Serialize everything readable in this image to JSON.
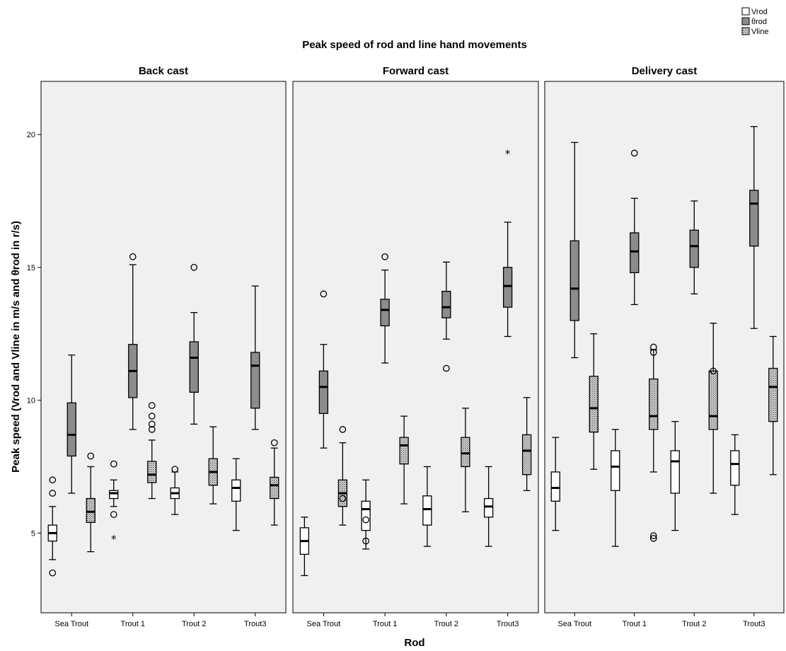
{
  "chart_data": {
    "type": "boxplot",
    "title": "Peak speed of rod and line hand movements",
    "xlabel": "Rod",
    "ylabel": "Peak speed (Vrod and Vline in m/s and θrod in r/s)",
    "ylim": [
      2,
      22
    ],
    "yticks": [
      5,
      10,
      15,
      20
    ],
    "categories": [
      "Sea Trout",
      "Trout 1",
      "Trout 2",
      "Trout3"
    ],
    "legend": {
      "position": "top-right",
      "entries": [
        {
          "name": "Vrod",
          "fill": "#ffffff"
        },
        {
          "name": "θrod",
          "fill": "#8c8c8c"
        },
        {
          "name": "Vline",
          "fill": "pattern"
        }
      ]
    },
    "panels": [
      {
        "title": "Back cast",
        "groups": [
          {
            "category": "Sea Trout",
            "boxes": [
              {
                "series": "Vrod",
                "min": 4.0,
                "q1": 4.7,
                "median": 5.0,
                "q3": 5.3,
                "max": 6.0,
                "outliers": [
                  6.5,
                  7.0,
                  3.5
                ],
                "extremes": []
              },
              {
                "series": "θrod",
                "min": 6.5,
                "q1": 7.9,
                "median": 8.7,
                "q3": 9.9,
                "max": 11.7,
                "outliers": [],
                "extremes": []
              },
              {
                "series": "Vline",
                "min": 4.3,
                "q1": 5.4,
                "median": 5.8,
                "q3": 6.3,
                "max": 7.5,
                "outliers": [
                  7.9
                ],
                "extremes": []
              }
            ]
          },
          {
            "category": "Trout 1",
            "boxes": [
              {
                "series": "Vrod",
                "min": 6.0,
                "q1": 6.3,
                "median": 6.5,
                "q3": 6.6,
                "max": 7.0,
                "outliers": [
                  7.6,
                  5.7
                ],
                "extremes": [
                  4.8
                ]
              },
              {
                "series": "θrod",
                "min": 8.9,
                "q1": 10.1,
                "median": 11.1,
                "q3": 12.1,
                "max": 15.1,
                "outliers": [
                  15.4
                ],
                "extremes": []
              },
              {
                "series": "Vline",
                "min": 6.3,
                "q1": 6.9,
                "median": 7.2,
                "q3": 7.7,
                "max": 8.5,
                "outliers": [
                  8.9,
                  9.1,
                  9.4,
                  9.8
                ],
                "extremes": []
              }
            ]
          },
          {
            "category": "Trout 2",
            "boxes": [
              {
                "series": "Vrod",
                "min": 5.7,
                "q1": 6.3,
                "median": 6.5,
                "q3": 6.7,
                "max": 7.3,
                "outliers": [
                  7.4
                ],
                "extremes": []
              },
              {
                "series": "θrod",
                "min": 9.1,
                "q1": 10.3,
                "median": 11.6,
                "q3": 12.2,
                "max": 13.3,
                "outliers": [
                  15.0
                ],
                "extremes": []
              },
              {
                "series": "Vline",
                "min": 6.1,
                "q1": 6.8,
                "median": 7.3,
                "q3": 7.8,
                "max": 9.0,
                "outliers": [],
                "extremes": []
              }
            ]
          },
          {
            "category": "Trout3",
            "boxes": [
              {
                "series": "Vrod",
                "min": 5.1,
                "q1": 6.2,
                "median": 6.7,
                "q3": 7.0,
                "max": 7.8,
                "outliers": [],
                "extremes": []
              },
              {
                "series": "θrod",
                "min": 8.9,
                "q1": 9.7,
                "median": 11.3,
                "q3": 11.8,
                "max": 14.3,
                "outliers": [],
                "extremes": []
              },
              {
                "series": "Vline",
                "min": 5.3,
                "q1": 6.3,
                "median": 6.8,
                "q3": 7.1,
                "max": 8.2,
                "outliers": [
                  8.4
                ],
                "extremes": []
              }
            ]
          }
        ]
      },
      {
        "title": "Forward cast",
        "groups": [
          {
            "category": "Sea Trout",
            "boxes": [
              {
                "series": "Vrod",
                "min": 3.4,
                "q1": 4.2,
                "median": 4.7,
                "q3": 5.2,
                "max": 5.6,
                "outliers": [],
                "extremes": []
              },
              {
                "series": "θrod",
                "min": 8.2,
                "q1": 9.5,
                "median": 10.5,
                "q3": 11.1,
                "max": 12.1,
                "outliers": [
                  14.0
                ],
                "extremes": []
              },
              {
                "series": "Vline",
                "min": 5.3,
                "q1": 6.0,
                "median": 6.5,
                "q3": 7.0,
                "max": 8.4,
                "outliers": [
                  8.9,
                  6.3
                ],
                "extremes": []
              }
            ]
          },
          {
            "category": "Trout 1",
            "boxes": [
              {
                "series": "Vrod",
                "min": 4.4,
                "q1": 5.1,
                "median": 5.9,
                "q3": 6.2,
                "max": 7.0,
                "outliers": [
                  5.5,
                  4.7
                ],
                "extremes": []
              },
              {
                "series": "θrod",
                "min": 11.4,
                "q1": 12.8,
                "median": 13.4,
                "q3": 13.8,
                "max": 14.9,
                "outliers": [
                  15.4
                ],
                "extremes": []
              },
              {
                "series": "Vline",
                "min": 6.1,
                "q1": 7.6,
                "median": 8.3,
                "q3": 8.6,
                "max": 9.4,
                "outliers": [],
                "extremes": []
              }
            ]
          },
          {
            "category": "Trout 2",
            "boxes": [
              {
                "series": "Vrod",
                "min": 4.5,
                "q1": 5.3,
                "median": 5.9,
                "q3": 6.4,
                "max": 7.5,
                "outliers": [],
                "extremes": []
              },
              {
                "series": "θrod",
                "min": 12.3,
                "q1": 13.1,
                "median": 13.5,
                "q3": 14.1,
                "max": 15.2,
                "outliers": [
                  11.2
                ],
                "extremes": []
              },
              {
                "series": "Vline",
                "min": 5.8,
                "q1": 7.5,
                "median": 8.0,
                "q3": 8.6,
                "max": 9.7,
                "outliers": [],
                "extremes": []
              }
            ]
          },
          {
            "category": "Trout3",
            "boxes": [
              {
                "series": "Vrod",
                "min": 4.5,
                "q1": 5.6,
                "median": 6.0,
                "q3": 6.3,
                "max": 7.5,
                "outliers": [],
                "extremes": []
              },
              {
                "series": "θrod",
                "min": 12.4,
                "q1": 13.5,
                "median": 14.3,
                "q3": 15.0,
                "max": 16.7,
                "outliers": [],
                "extremes": [
                  19.3
                ]
              },
              {
                "series": "Vline",
                "min": 6.6,
                "q1": 7.2,
                "median": 8.1,
                "q3": 8.7,
                "max": 10.1,
                "outliers": [],
                "extremes": []
              }
            ]
          }
        ]
      },
      {
        "title": "Delivery cast",
        "groups": [
          {
            "category": "Sea Trout",
            "boxes": [
              {
                "series": "Vrod",
                "min": 5.1,
                "q1": 6.2,
                "median": 6.7,
                "q3": 7.3,
                "max": 8.6,
                "outliers": [],
                "extremes": []
              },
              {
                "series": "θrod",
                "min": 11.6,
                "q1": 13.0,
                "median": 14.2,
                "q3": 16.0,
                "max": 19.7,
                "outliers": [],
                "extremes": []
              },
              {
                "series": "Vline",
                "min": 7.4,
                "q1": 8.8,
                "median": 9.7,
                "q3": 10.9,
                "max": 12.5,
                "outliers": [],
                "extremes": []
              }
            ]
          },
          {
            "category": "Trout 1",
            "boxes": [
              {
                "series": "Vrod",
                "min": 4.5,
                "q1": 6.6,
                "median": 7.5,
                "q3": 8.1,
                "max": 8.9,
                "outliers": [],
                "extremes": []
              },
              {
                "series": "θrod",
                "min": 13.6,
                "q1": 14.8,
                "median": 15.6,
                "q3": 16.3,
                "max": 17.6,
                "outliers": [
                  19.3
                ],
                "extremes": []
              },
              {
                "series": "Vline",
                "min": 7.3,
                "q1": 8.9,
                "median": 9.4,
                "q3": 10.8,
                "max": 11.9,
                "outliers": [
                  12.0,
                  11.8,
                  4.9,
                  4.8
                ],
                "extremes": []
              }
            ]
          },
          {
            "category": "Trout 2",
            "boxes": [
              {
                "series": "Vrod",
                "min": 5.1,
                "q1": 6.5,
                "median": 7.7,
                "q3": 8.1,
                "max": 9.2,
                "outliers": [],
                "extremes": []
              },
              {
                "series": "θrod",
                "min": 14.0,
                "q1": 15.0,
                "median": 15.8,
                "q3": 16.4,
                "max": 17.5,
                "outliers": [],
                "extremes": []
              },
              {
                "series": "Vline",
                "min": 6.5,
                "q1": 8.9,
                "median": 9.4,
                "q3": 11.1,
                "max": 12.9,
                "outliers": [
                  11.1
                ],
                "extremes": []
              }
            ]
          },
          {
            "category": "Trout3",
            "boxes": [
              {
                "series": "Vrod",
                "min": 5.7,
                "q1": 6.8,
                "median": 7.6,
                "q3": 8.1,
                "max": 8.7,
                "outliers": [],
                "extremes": []
              },
              {
                "series": "θrod",
                "min": 12.7,
                "q1": 15.8,
                "median": 17.4,
                "q3": 17.9,
                "max": 20.3,
                "outliers": [],
                "extremes": []
              },
              {
                "series": "Vline",
                "min": 7.2,
                "q1": 9.2,
                "median": 10.5,
                "q3": 11.2,
                "max": 12.4,
                "outliers": [],
                "extremes": []
              }
            ]
          }
        ]
      }
    ]
  }
}
